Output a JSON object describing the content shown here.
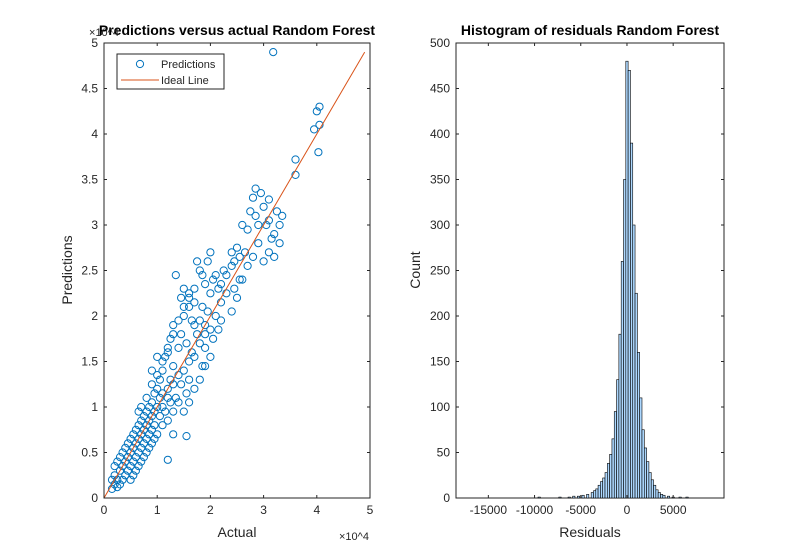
{
  "chart_data": [
    {
      "type": "scatter",
      "title": "Predictions versus actual Random Forest",
      "xlabel": "Actual",
      "ylabel": "Predictions",
      "xlim": [
        0,
        50000
      ],
      "ylim": [
        0,
        50000
      ],
      "x_tick_labels": [
        "0",
        "1",
        "2",
        "3",
        "4",
        "5"
      ],
      "y_tick_labels": [
        "0",
        "0.5",
        "1",
        "1.5",
        "2",
        "2.5",
        "3",
        "3.5",
        "4",
        "4.5",
        "5"
      ],
      "x_exponent_label": "×10^4",
      "y_exponent_label": "×10^4",
      "grid": false,
      "legend_position": "top-left",
      "series": [
        {
          "name": "Predictions",
          "style": "open-circle",
          "color": "#0072BD",
          "points": [
            [
              31800,
              49000
            ],
            [
              40500,
              43000
            ],
            [
              40000,
              42500
            ],
            [
              40500,
              41000
            ],
            [
              39500,
              40500
            ],
            [
              40300,
              38000
            ],
            [
              36000,
              37200
            ],
            [
              36000,
              35500
            ],
            [
              28500,
              34000
            ],
            [
              29500,
              33500
            ],
            [
              28000,
              33000
            ],
            [
              31000,
              32800
            ],
            [
              30000,
              32000
            ],
            [
              32500,
              31500
            ],
            [
              27500,
              31500
            ],
            [
              33500,
              31000
            ],
            [
              28500,
              31000
            ],
            [
              31000,
              30500
            ],
            [
              29000,
              30000
            ],
            [
              30500,
              30000
            ],
            [
              33000,
              30000
            ],
            [
              26000,
              30000
            ],
            [
              27000,
              29500
            ],
            [
              32000,
              29000
            ],
            [
              31500,
              28500
            ],
            [
              33000,
              28000
            ],
            [
              25000,
              27500
            ],
            [
              31000,
              27000
            ],
            [
              30000,
              26000
            ],
            [
              32000,
              26500
            ],
            [
              25500,
              26500
            ],
            [
              26500,
              27000
            ],
            [
              24000,
              27000
            ],
            [
              24500,
              26000
            ],
            [
              24000,
              25500
            ],
            [
              23000,
              24500
            ],
            [
              22500,
              25000
            ],
            [
              21000,
              24500
            ],
            [
              20500,
              24000
            ],
            [
              22000,
              23500
            ],
            [
              21500,
              23000
            ],
            [
              19000,
              23500
            ],
            [
              13500,
              24500
            ],
            [
              19500,
              26000
            ],
            [
              20000,
              27000
            ],
            [
              18000,
              25000
            ],
            [
              17500,
              26000
            ],
            [
              18500,
              24500
            ],
            [
              20000,
              22500
            ],
            [
              15000,
              23000
            ],
            [
              16000,
              22500
            ],
            [
              14500,
              22000
            ],
            [
              17000,
              21500
            ],
            [
              16000,
              21000
            ],
            [
              15000,
              20000
            ],
            [
              19000,
              19000
            ],
            [
              20000,
              18500
            ],
            [
              21000,
              20000
            ],
            [
              22000,
              19500
            ],
            [
              24000,
              20500
            ],
            [
              25000,
              22000
            ],
            [
              26000,
              24000
            ],
            [
              17500,
              18000
            ],
            [
              18000,
              17000
            ],
            [
              19000,
              16500
            ],
            [
              16500,
              16000
            ],
            [
              15500,
              17000
            ],
            [
              14500,
              18000
            ],
            [
              13000,
              19000
            ],
            [
              12500,
              17500
            ],
            [
              14000,
              16500
            ],
            [
              16000,
              15000
            ],
            [
              17000,
              15500
            ],
            [
              18500,
              14500
            ],
            [
              12000,
              16000
            ],
            [
              11500,
              15500
            ],
            [
              13000,
              14500
            ],
            [
              14000,
              13500
            ],
            [
              15000,
              14000
            ],
            [
              16000,
              13000
            ],
            [
              12500,
              13000
            ],
            [
              11000,
              14000
            ],
            [
              10500,
              13000
            ],
            [
              12000,
              12000
            ],
            [
              13000,
              12500
            ],
            [
              14500,
              12500
            ],
            [
              15500,
              11500
            ],
            [
              11000,
              11500
            ],
            [
              10000,
              12000
            ],
            [
              10500,
              11000
            ],
            [
              9500,
              11500
            ],
            [
              12000,
              11000
            ],
            [
              13500,
              11000
            ],
            [
              11000,
              10000
            ],
            [
              12500,
              10500
            ],
            [
              9000,
              10500
            ],
            [
              10000,
              10000
            ],
            [
              8500,
              10000
            ],
            [
              9500,
              9500
            ],
            [
              11500,
              9500
            ],
            [
              13000,
              9500
            ],
            [
              8000,
              9500
            ],
            [
              9000,
              9000
            ],
            [
              10500,
              9000
            ],
            [
              12000,
              8500
            ],
            [
              7500,
              9000
            ],
            [
              8500,
              8500
            ],
            [
              9500,
              8000
            ],
            [
              11000,
              8000
            ],
            [
              7000,
              8500
            ],
            [
              8000,
              8000
            ],
            [
              9000,
              7500
            ],
            [
              10000,
              7000
            ],
            [
              6500,
              8000
            ],
            [
              7500,
              7500
            ],
            [
              8500,
              7000
            ],
            [
              9500,
              6500
            ],
            [
              6000,
              7500
            ],
            [
              7000,
              7000
            ],
            [
              8000,
              6500
            ],
            [
              9000,
              6000
            ],
            [
              5500,
              7000
            ],
            [
              6500,
              6500
            ],
            [
              7500,
              6000
            ],
            [
              8500,
              5500
            ],
            [
              5000,
              6500
            ],
            [
              6000,
              6000
            ],
            [
              7000,
              5500
            ],
            [
              8000,
              5000
            ],
            [
              4500,
              6000
            ],
            [
              5500,
              5500
            ],
            [
              6500,
              5000
            ],
            [
              7500,
              4500
            ],
            [
              4000,
              5500
            ],
            [
              5000,
              5000
            ],
            [
              6000,
              4500
            ],
            [
              7000,
              4000
            ],
            [
              3500,
              5000
            ],
            [
              4500,
              4500
            ],
            [
              5500,
              4000
            ],
            [
              6500,
              3500
            ],
            [
              3000,
              4500
            ],
            [
              4000,
              4000
            ],
            [
              5000,
              3500
            ],
            [
              6000,
              3000
            ],
            [
              2500,
              4000
            ],
            [
              3500,
              3500
            ],
            [
              4500,
              3000
            ],
            [
              5500,
              2500
            ],
            [
              2000,
              3500
            ],
            [
              3000,
              3000
            ],
            [
              4000,
              2500
            ],
            [
              5000,
              2000
            ],
            [
              2000,
              2500
            ],
            [
              2500,
              2000
            ],
            [
              3500,
              2000
            ],
            [
              1500,
              2000
            ],
            [
              2000,
              1500
            ],
            [
              3000,
              1500
            ],
            [
              1500,
              1000
            ],
            [
              2500,
              1200
            ],
            [
              6500,
              9500
            ],
            [
              7000,
              10000
            ],
            [
              8000,
              11000
            ],
            [
              9000,
              12500
            ],
            [
              10000,
              13500
            ],
            [
              11000,
              15000
            ],
            [
              12000,
              16500
            ],
            [
              13000,
              18000
            ],
            [
              14000,
              19500
            ],
            [
              15000,
              21000
            ],
            [
              16000,
              22000
            ],
            [
              17000,
              23000
            ],
            [
              10000,
              15500
            ],
            [
              9000,
              14000
            ],
            [
              14000,
              10500
            ],
            [
              15000,
              9500
            ],
            [
              16000,
              10500
            ],
            [
              17000,
              12000
            ],
            [
              18000,
              13000
            ],
            [
              19000,
              14500
            ],
            [
              20000,
              15500
            ],
            [
              12000,
              4200
            ],
            [
              15500,
              6800
            ],
            [
              13000,
              7000
            ],
            [
              21500,
              18500
            ],
            [
              22000,
              21500
            ],
            [
              23000,
              22500
            ],
            [
              19500,
              20500
            ],
            [
              18500,
              21000
            ],
            [
              24500,
              23000
            ],
            [
              25500,
              24000
            ],
            [
              27000,
              25500
            ],
            [
              28000,
              26500
            ],
            [
              29000,
              28000
            ],
            [
              17000,
              19000
            ],
            [
              16500,
              19500
            ],
            [
              18000,
              19500
            ],
            [
              19000,
              18000
            ],
            [
              20500,
              17500
            ]
          ]
        },
        {
          "name": "Ideal Line",
          "style": "line",
          "color": "#D95319",
          "points": [
            [
              0,
              0
            ],
            [
              49000,
              49000
            ]
          ]
        }
      ]
    },
    {
      "type": "bar",
      "subtype": "histogram",
      "title": "Histogram of residuals Random Forest",
      "xlabel": "Residuals",
      "ylabel": "Count",
      "xlim": [
        -18500,
        10500
      ],
      "ylim": [
        0,
        500
      ],
      "x_ticks": [
        -15000,
        -10000,
        -5000,
        0,
        5000
      ],
      "x_tick_labels": [
        "-15000",
        "-10000",
        "-5000",
        "0",
        "5000"
      ],
      "y_ticks": [
        0,
        50,
        100,
        150,
        200,
        250,
        300,
        350,
        400,
        450,
        500
      ],
      "y_tick_labels": [
        "0",
        "50",
        "100",
        "150",
        "200",
        "250",
        "300",
        "350",
        "400",
        "450",
        "500"
      ],
      "grid": false,
      "bin_width": 250,
      "bar_color": "#ADD8FF",
      "edge_color": "#000000",
      "bins": [
        [
          -9500,
          1
        ],
        [
          -7250,
          1
        ],
        [
          -6250,
          1
        ],
        [
          -5750,
          2
        ],
        [
          -5250,
          2
        ],
        [
          -4750,
          3
        ],
        [
          -4250,
          4
        ],
        [
          -3750,
          6
        ],
        [
          -3500,
          8
        ],
        [
          -3250,
          10
        ],
        [
          -3000,
          14
        ],
        [
          -2750,
          18
        ],
        [
          -2500,
          22
        ],
        [
          -2250,
          28
        ],
        [
          -2000,
          38
        ],
        [
          -1750,
          48
        ],
        [
          -1500,
          65
        ],
        [
          -1250,
          95
        ],
        [
          -1000,
          130
        ],
        [
          -750,
          180
        ],
        [
          -500,
          260
        ],
        [
          -250,
          350
        ],
        [
          0,
          480
        ],
        [
          250,
          470
        ],
        [
          500,
          390
        ],
        [
          750,
          300
        ],
        [
          1000,
          225
        ],
        [
          1250,
          160
        ],
        [
          1500,
          110
        ],
        [
          1750,
          75
        ],
        [
          2000,
          55
        ],
        [
          2250,
          40
        ],
        [
          2500,
          28
        ],
        [
          2750,
          20
        ],
        [
          3000,
          14
        ],
        [
          3250,
          9
        ],
        [
          3500,
          6
        ],
        [
          3750,
          4
        ],
        [
          4000,
          3
        ],
        [
          4500,
          2
        ],
        [
          5000,
          1
        ],
        [
          5750,
          1
        ],
        [
          6500,
          1
        ]
      ]
    }
  ]
}
